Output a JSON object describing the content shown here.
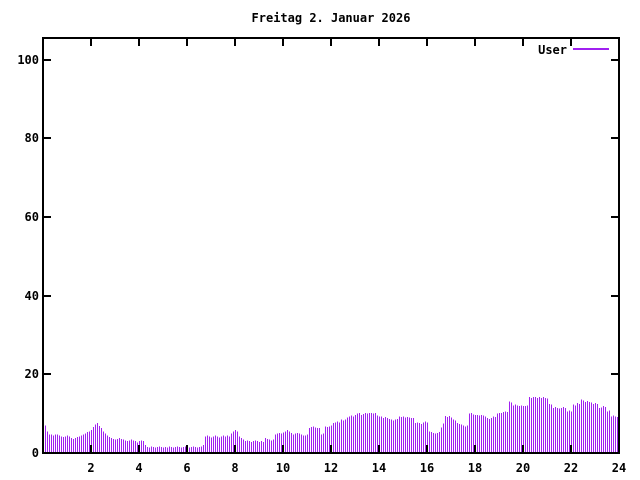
{
  "page": {
    "title": "Freitag 2. Januar 2026"
  },
  "legend": {
    "label": "User"
  },
  "chart_data": {
    "type": "bar",
    "title": "Freitag 2. Januar 2026",
    "xlabel": "",
    "ylabel": "",
    "xlim": [
      0,
      24
    ],
    "ylim": [
      0,
      105
    ],
    "x_ticks": [
      2,
      4,
      6,
      8,
      10,
      12,
      14,
      16,
      18,
      20,
      22,
      24
    ],
    "y_ticks": [
      0,
      20,
      40,
      60,
      80,
      100
    ],
    "grid": false,
    "legend_position": "top-right",
    "x_unit": "hour-of-day",
    "sample_interval_minutes": 5,
    "colors": {
      "bar": "#a020f0",
      "frame": "#000000",
      "text": "#000000",
      "background": "#ffffff"
    },
    "series": [
      {
        "name": "User",
        "color": "#a020f0",
        "values": [
          7.0,
          5.5,
          4.7,
          4.7,
          4.4,
          4.7,
          4.7,
          4.4,
          4.2,
          4.1,
          4.2,
          4.4,
          4.2,
          3.8,
          3.6,
          3.8,
          4.1,
          4.2,
          4.4,
          4.7,
          4.9,
          5.3,
          5.5,
          5.9,
          6.6,
          7.2,
          7.6,
          6.9,
          6.4,
          5.5,
          4.9,
          4.4,
          4.1,
          3.8,
          3.6,
          3.4,
          3.6,
          3.8,
          3.6,
          3.4,
          3.2,
          3.0,
          3.2,
          3.4,
          3.2,
          3.0,
          2.7,
          3.0,
          3.2,
          3.0,
          2.0,
          1.5,
          1.4,
          1.6,
          1.5,
          1.4,
          1.5,
          1.6,
          1.5,
          1.4,
          1.5,
          1.4,
          1.6,
          1.5,
          1.4,
          1.5,
          1.6,
          1.5,
          1.4,
          1.5,
          1.6,
          1.5,
          1.4,
          1.5,
          1.6,
          1.5,
          1.4,
          1.5,
          1.6,
          2.0,
          4.2,
          4.4,
          4.2,
          4.0,
          4.2,
          4.4,
          4.2,
          4.0,
          4.2,
          4.4,
          4.2,
          4.4,
          4.2,
          5.0,
          5.5,
          5.9,
          5.5,
          4.2,
          3.8,
          3.4,
          3.0,
          3.2,
          3.0,
          2.8,
          3.0,
          3.2,
          3.0,
          2.8,
          3.0,
          2.8,
          3.8,
          3.6,
          3.4,
          3.2,
          3.4,
          4.7,
          4.9,
          5.1,
          5.0,
          5.2,
          5.5,
          5.9,
          5.5,
          5.1,
          4.7,
          4.9,
          5.1,
          5.0,
          4.7,
          4.4,
          4.5,
          4.7,
          6.3,
          6.6,
          6.8,
          6.5,
          6.3,
          6.4,
          4.7,
          4.9,
          6.8,
          6.6,
          6.8,
          7.0,
          7.6,
          7.8,
          8.0,
          7.8,
          8.5,
          8.3,
          8.5,
          9.0,
          9.3,
          9.5,
          9.3,
          9.7,
          10.0,
          10.2,
          9.7,
          9.9,
          10.2,
          10.0,
          10.2,
          10.2,
          10.0,
          10.2,
          9.5,
          9.3,
          9.3,
          8.9,
          9.1,
          8.9,
          8.7,
          8.5,
          8.3,
          8.5,
          8.7,
          9.3,
          9.1,
          9.3,
          9.0,
          9.2,
          9.0,
          8.9,
          8.9,
          7.6,
          7.8,
          7.6,
          7.4,
          7.8,
          8.0,
          7.8,
          5.5,
          5.3,
          5.1,
          4.9,
          5.1,
          5.3,
          6.5,
          7.5,
          9.4,
          9.2,
          9.4,
          9.0,
          8.5,
          8.3,
          7.6,
          7.4,
          7.2,
          7.0,
          6.8,
          7.0,
          10.0,
          10.2,
          9.8,
          9.7,
          9.7,
          9.5,
          9.7,
          9.5,
          9.3,
          8.9,
          8.7,
          8.9,
          9.3,
          9.1,
          10.0,
          10.2,
          10.2,
          10.4,
          10.6,
          10.4,
          13.1,
          12.9,
          12.1,
          12.3,
          12.1,
          11.9,
          12.1,
          11.9,
          11.9,
          12.1,
          14.2,
          14.0,
          14.2,
          14.2,
          14.0,
          14.2,
          14.0,
          14.2,
          14.0,
          13.8,
          12.5,
          12.3,
          11.5,
          11.7,
          11.5,
          11.3,
          11.5,
          11.7,
          11.5,
          10.6,
          10.8,
          10.6,
          12.3,
          12.1,
          12.7,
          12.5,
          13.6,
          13.4,
          13.0,
          13.2,
          13.0,
          12.8,
          12.5,
          12.7,
          12.5,
          11.4,
          11.6,
          11.9,
          11.7,
          10.6,
          10.8,
          9.3,
          9.5,
          9.3,
          9.1,
          8.9
        ]
      }
    ]
  }
}
